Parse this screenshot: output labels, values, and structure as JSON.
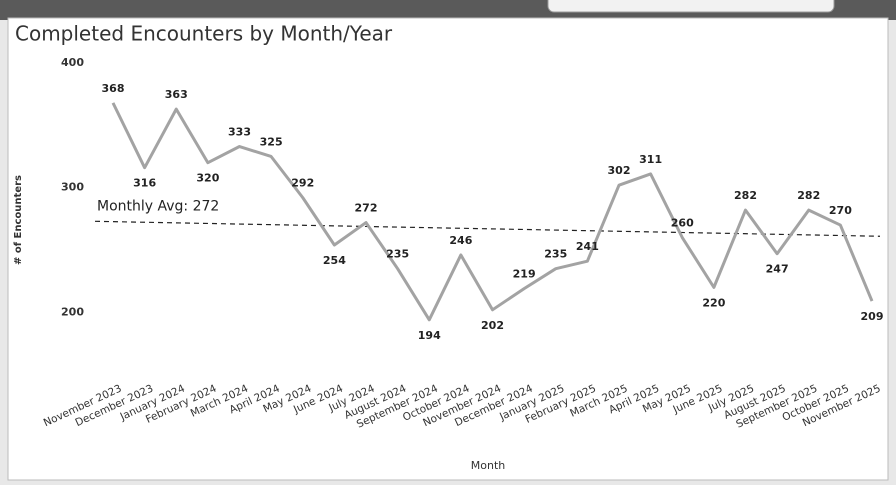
{
  "chart_data": {
    "type": "line",
    "title": "Completed Encounters by Month/Year",
    "x_label": "Month",
    "y_label": "# of Encounters",
    "categories": [
      "November 2023",
      "December 2023",
      "January 2024",
      "February 2024",
      "March 2024",
      "April 2024",
      "May 2024",
      "June 2024",
      "July 2024",
      "August 2024",
      "September 2024",
      "October 2024",
      "November 2024",
      "December 2024",
      "January 2025",
      "February 2025",
      "March 2025",
      "April 2025",
      "May 2025",
      "June 2025",
      "July 2025",
      "August 2025",
      "September 2025",
      "October 2025",
      "November 2025"
    ],
    "series": [
      {
        "name": "Completed Encounters",
        "color": "#a3a3a3",
        "values": [
          368,
          316,
          363,
          320,
          333,
          325,
          292,
          254,
          272,
          235,
          194,
          246,
          202,
          219,
          235,
          241,
          302,
          311,
          260,
          220,
          282,
          247,
          282,
          270,
          209
        ]
      }
    ],
    "reference_line": {
      "label": "Monthly Avg: 272",
      "start": 273,
      "end": 261
    },
    "ylim": [
      185,
      400
    ],
    "yticks": [
      200,
      300,
      400
    ],
    "grid": false
  }
}
